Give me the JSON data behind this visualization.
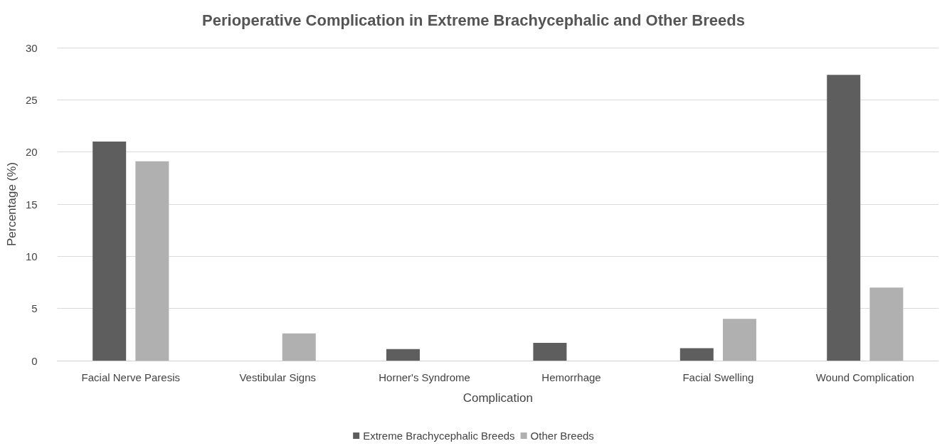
{
  "chart_data": {
    "type": "bar",
    "title": "Perioperative Complication in Extreme Brachycephalic and Other Breeds",
    "xlabel": "Complication",
    "ylabel": "Percentage (%)",
    "categories": [
      "Facial Nerve Paresis",
      "Vestibular Signs",
      "Horner's Syndrome",
      "Hemorrhage",
      "Facial Swelling",
      "Wound Complication"
    ],
    "series": [
      {
        "name": "Extreme Brachycephalic Breeds",
        "color": "#5e5e5e",
        "values": [
          21.0,
          0,
          1.1,
          1.7,
          1.2,
          27.4
        ]
      },
      {
        "name": "Other Breeds",
        "color": "#b0b0b0",
        "values": [
          19.1,
          2.6,
          0,
          0,
          4.0,
          7.0
        ]
      }
    ],
    "ylim": [
      0,
      30
    ],
    "yticks": [
      0,
      5,
      10,
      15,
      20,
      25,
      30
    ],
    "grid": "y",
    "legend": "bottom"
  }
}
